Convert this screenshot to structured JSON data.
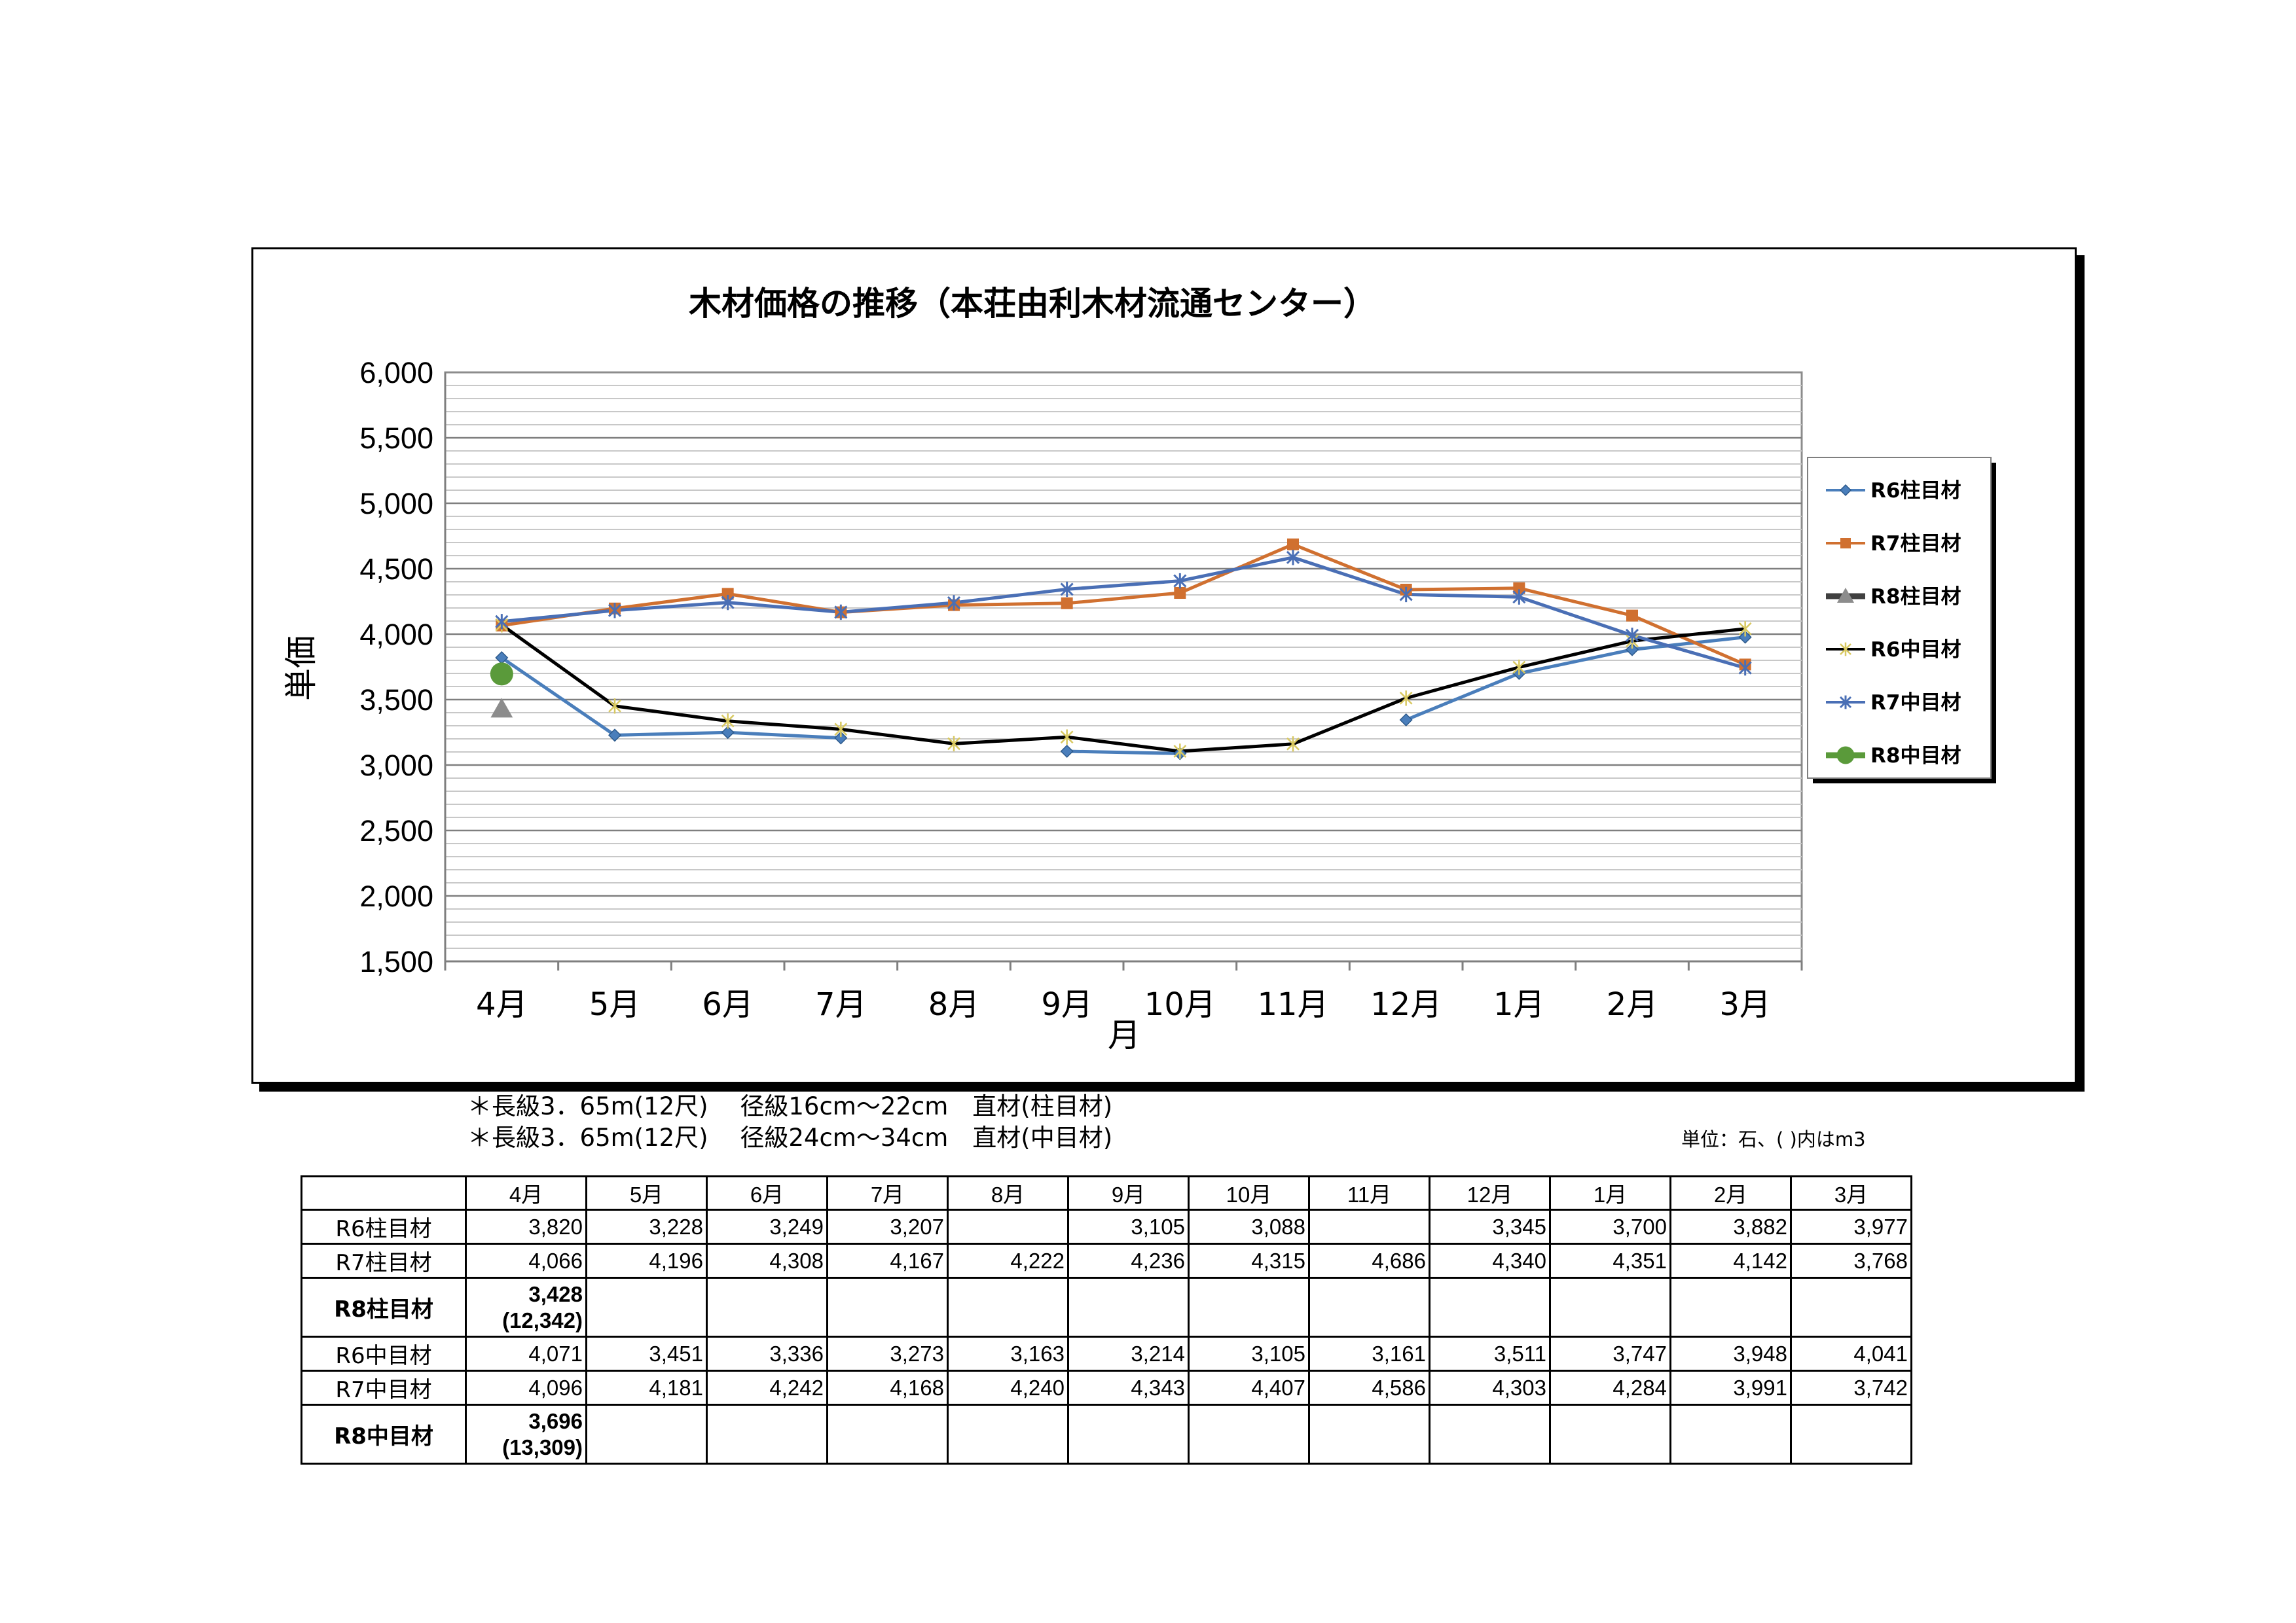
{
  "chart_data": {
    "type": "line",
    "title": "木材価格の推移（本荘由利木材流通センター）",
    "xlabel": "月",
    "ylabel": "単価",
    "categories": [
      "4月",
      "5月",
      "6月",
      "7月",
      "8月",
      "9月",
      "10月",
      "11月",
      "12月",
      "1月",
      "2月",
      "3月"
    ],
    "ylim": [
      1500,
      6000
    ],
    "yticks": [
      "1,500",
      "2,000",
      "2,500",
      "3,000",
      "3,500",
      "4,000",
      "4,500",
      "5,000",
      "5,500",
      "6,000"
    ],
    "grid": true,
    "legend_position": "right",
    "series": [
      {
        "name": "R6柱目材",
        "values": [
          3820,
          3228,
          3249,
          3207,
          null,
          3105,
          3088,
          null,
          3345,
          3700,
          3882,
          3977
        ],
        "color": "#4a7ebb",
        "marker": "diamond"
      },
      {
        "name": "R7柱目材",
        "values": [
          4066,
          4196,
          4308,
          4167,
          4222,
          4236,
          4315,
          4686,
          4340,
          4351,
          4142,
          3768
        ],
        "color": "#d07030",
        "marker": "square"
      },
      {
        "name": "R8柱目材",
        "values": [
          3428,
          null,
          null,
          null,
          null,
          null,
          null,
          null,
          null,
          null,
          null,
          null
        ],
        "color": "#8c8c8c",
        "marker": "triangle"
      },
      {
        "name": "R6中目材",
        "values": [
          4071,
          3451,
          3336,
          3273,
          3163,
          3214,
          3105,
          3161,
          3511,
          3747,
          3948,
          4041
        ],
        "color": "#000000",
        "marker": "star"
      },
      {
        "name": "R7中目材",
        "values": [
          4096,
          4181,
          4242,
          4168,
          4240,
          4343,
          4407,
          4586,
          4303,
          4284,
          3991,
          3742
        ],
        "color": "#4a6fb5",
        "marker": "cross"
      },
      {
        "name": "R8中目材",
        "values": [
          3696,
          null,
          null,
          null,
          null,
          null,
          null,
          null,
          null,
          null,
          null,
          null
        ],
        "color": "#5a9a3a",
        "marker": "circle"
      }
    ]
  },
  "notes": {
    "line1": "＊長級3．65m(12尺)　 径級16cm～22cm　直材(柱目材)",
    "line2": "＊長級3．65m(12尺)　 径級24cm～34cm　直材(中目材)",
    "unit": "単位：石、( )内はm3"
  },
  "table": {
    "headers": [
      "4月",
      "5月",
      "6月",
      "7月",
      "8月",
      "9月",
      "10月",
      "11月",
      "12月",
      "1月",
      "2月",
      "3月"
    ],
    "rows": [
      {
        "label": "R6柱目材",
        "cells": [
          "3,820",
          "3,228",
          "3,249",
          "3,207",
          "",
          "3,105",
          "3,088",
          "",
          "3,345",
          "3,700",
          "3,882",
          "3,977"
        ]
      },
      {
        "label": "R7柱目材",
        "cells": [
          "4,066",
          "4,196",
          "4,308",
          "4,167",
          "4,222",
          "4,236",
          "4,315",
          "4,686",
          "4,340",
          "4,351",
          "4,142",
          "3,768"
        ]
      },
      {
        "label": "R8柱目材",
        "first": "3,428",
        "first_sub": "(12,342)"
      },
      {
        "label": "R6中目材",
        "cells": [
          "4,071",
          "3,451",
          "3,336",
          "3,273",
          "3,163",
          "3,214",
          "3,105",
          "3,161",
          "3,511",
          "3,747",
          "3,948",
          "4,041"
        ]
      },
      {
        "label": "R7中目材",
        "cells": [
          "4,096",
          "4,181",
          "4,242",
          "4,168",
          "4,240",
          "4,343",
          "4,407",
          "4,586",
          "4,303",
          "4,284",
          "3,991",
          "3,742"
        ]
      },
      {
        "label": "R8中目材",
        "first": "3,696",
        "first_sub": "(13,309)"
      }
    ]
  }
}
